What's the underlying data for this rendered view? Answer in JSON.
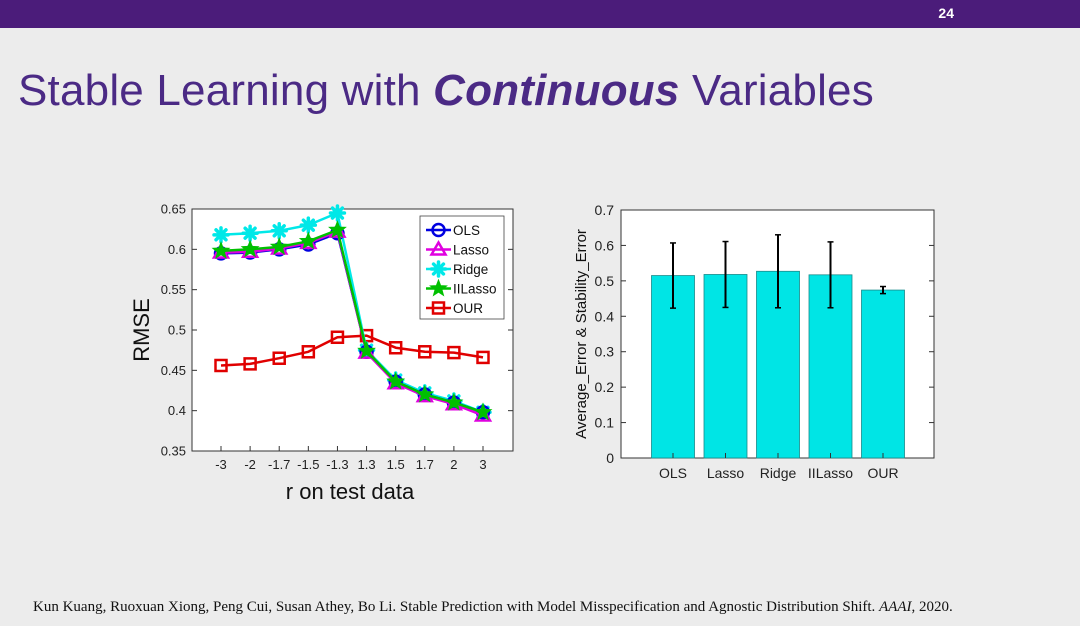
{
  "slide": {
    "page_number": "24",
    "title_pre": "Stable Learning with ",
    "title_emph": "Continuous",
    "title_post": " Variables"
  },
  "citation": {
    "text": "Kun Kuang, Ruoxuan Xiong, Peng Cui, Susan Athey, Bo Li. Stable Prediction with Model Misspecification and Agnostic Distribution Shift. ",
    "venue": "AAAI",
    "year": ", 2020."
  },
  "colors": {
    "OLS": "#0000e0",
    "Lasso": "#e000e0",
    "Ridge": "#00e8e8",
    "IILasso": "#00c000",
    "OUR": "#e00000",
    "bar_fill": "#00e5e5"
  },
  "chart_data": [
    {
      "type": "line",
      "title": "",
      "xlabel": "r on test data",
      "ylabel": "RMSE",
      "categories": [
        "-3",
        "-2",
        "-1.7",
        "-1.5",
        "-1.3",
        "1.3",
        "1.5",
        "1.7",
        "2",
        "3"
      ],
      "ylim": [
        0.35,
        0.65
      ],
      "yticks": [
        "0.65",
        "0.6",
        "0.55",
        "0.5",
        "0.45",
        "0.4",
        "0.35"
      ],
      "legend_position": "top-right",
      "series": [
        {
          "name": "OLS",
          "marker": "circle",
          "values": [
            0.595,
            0.596,
            0.6,
            0.606,
            0.62,
            0.473,
            0.436,
            0.42,
            0.41,
            0.398
          ]
        },
        {
          "name": "Lasso",
          "marker": "triangle",
          "values": [
            0.596,
            0.597,
            0.601,
            0.608,
            0.622,
            0.472,
            0.434,
            0.418,
            0.408,
            0.394
          ]
        },
        {
          "name": "Ridge",
          "marker": "asterisk",
          "values": [
            0.618,
            0.62,
            0.623,
            0.63,
            0.645,
            0.475,
            0.438,
            0.422,
            0.412,
            0.398
          ]
        },
        {
          "name": "IILasso",
          "marker": "star",
          "values": [
            0.598,
            0.6,
            0.603,
            0.61,
            0.624,
            0.474,
            0.436,
            0.42,
            0.41,
            0.398
          ]
        },
        {
          "name": "OUR",
          "marker": "square",
          "values": [
            0.456,
            0.458,
            0.465,
            0.473,
            0.491,
            0.493,
            0.478,
            0.473,
            0.472,
            0.466
          ]
        }
      ]
    },
    {
      "type": "bar",
      "title": "",
      "xlabel": "",
      "ylabel": "Average_Error & Stability_Error",
      "categories": [
        "OLS",
        "Lasso",
        "Ridge",
        "IILasso",
        "OUR"
      ],
      "values": [
        0.515,
        0.518,
        0.527,
        0.517,
        0.474
      ],
      "errors": [
        0.092,
        0.093,
        0.103,
        0.093,
        0.01
      ],
      "ylim": [
        0,
        0.7
      ],
      "yticks": [
        "0",
        "0.1",
        "0.2",
        "0.3",
        "0.4",
        "0.5",
        "0.6",
        "0.7"
      ]
    }
  ]
}
